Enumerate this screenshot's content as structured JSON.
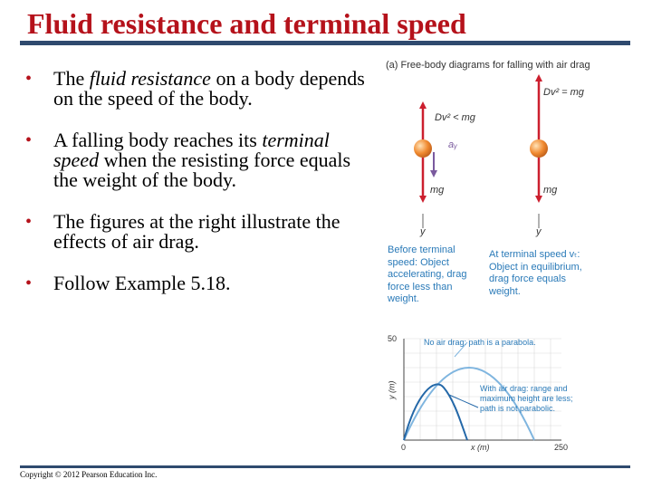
{
  "slide": {
    "title": "Fluid resistance and terminal speed",
    "copyright": "Copyright © 2012 Pearson Education Inc."
  },
  "bullets": [
    {
      "before": "The ",
      "em": "fluid resistance",
      "after": " on a body depends on the speed of the body."
    },
    {
      "before": "A falling body reaches its ",
      "em": "terminal speed",
      "after": " when the resisting force equals the weight of the body."
    },
    {
      "before": "The figures at the right illustrate the effects of air drag.",
      "em": "",
      "after": ""
    },
    {
      "before": "Follow Example 5.18.",
      "em": "",
      "after": ""
    }
  ],
  "figure_a": {
    "heading": "(a) Free-body diagrams for falling with air drag",
    "left_drag_label": "Dv² < mg",
    "right_drag_label": "Dv² = mg",
    "weight_label": "mg",
    "accel_label": "aᵧ",
    "axis_label": "y",
    "left_caption_lines": [
      "Before terminal",
      "speed: Object",
      "accelerating, drag",
      "force less than",
      "weight."
    ],
    "right_caption_lines": [
      "At terminal speed vₜ:",
      "Object in equilibrium,",
      "drag force equals",
      "weight."
    ],
    "colors": {
      "force": "#cc1f2e",
      "accel": "#7a5a9e",
      "ball": "#f08a30",
      "text": "#2a7ab8"
    }
  },
  "figure_b": {
    "y_tick_top": "50",
    "x_tick_left": "0",
    "x_tick_right": "250",
    "x_axis_label": "x (m)",
    "y_axis_label": "y (m)",
    "no_drag_note": "No air drag: path is a parabola.",
    "drag_note_lines": [
      "With air drag: range and",
      "maximum height are less;",
      "path is not parabolic."
    ],
    "colors": {
      "no_drag": "#7fb5df",
      "drag": "#2468a8",
      "text": "#2a7ab8"
    }
  }
}
